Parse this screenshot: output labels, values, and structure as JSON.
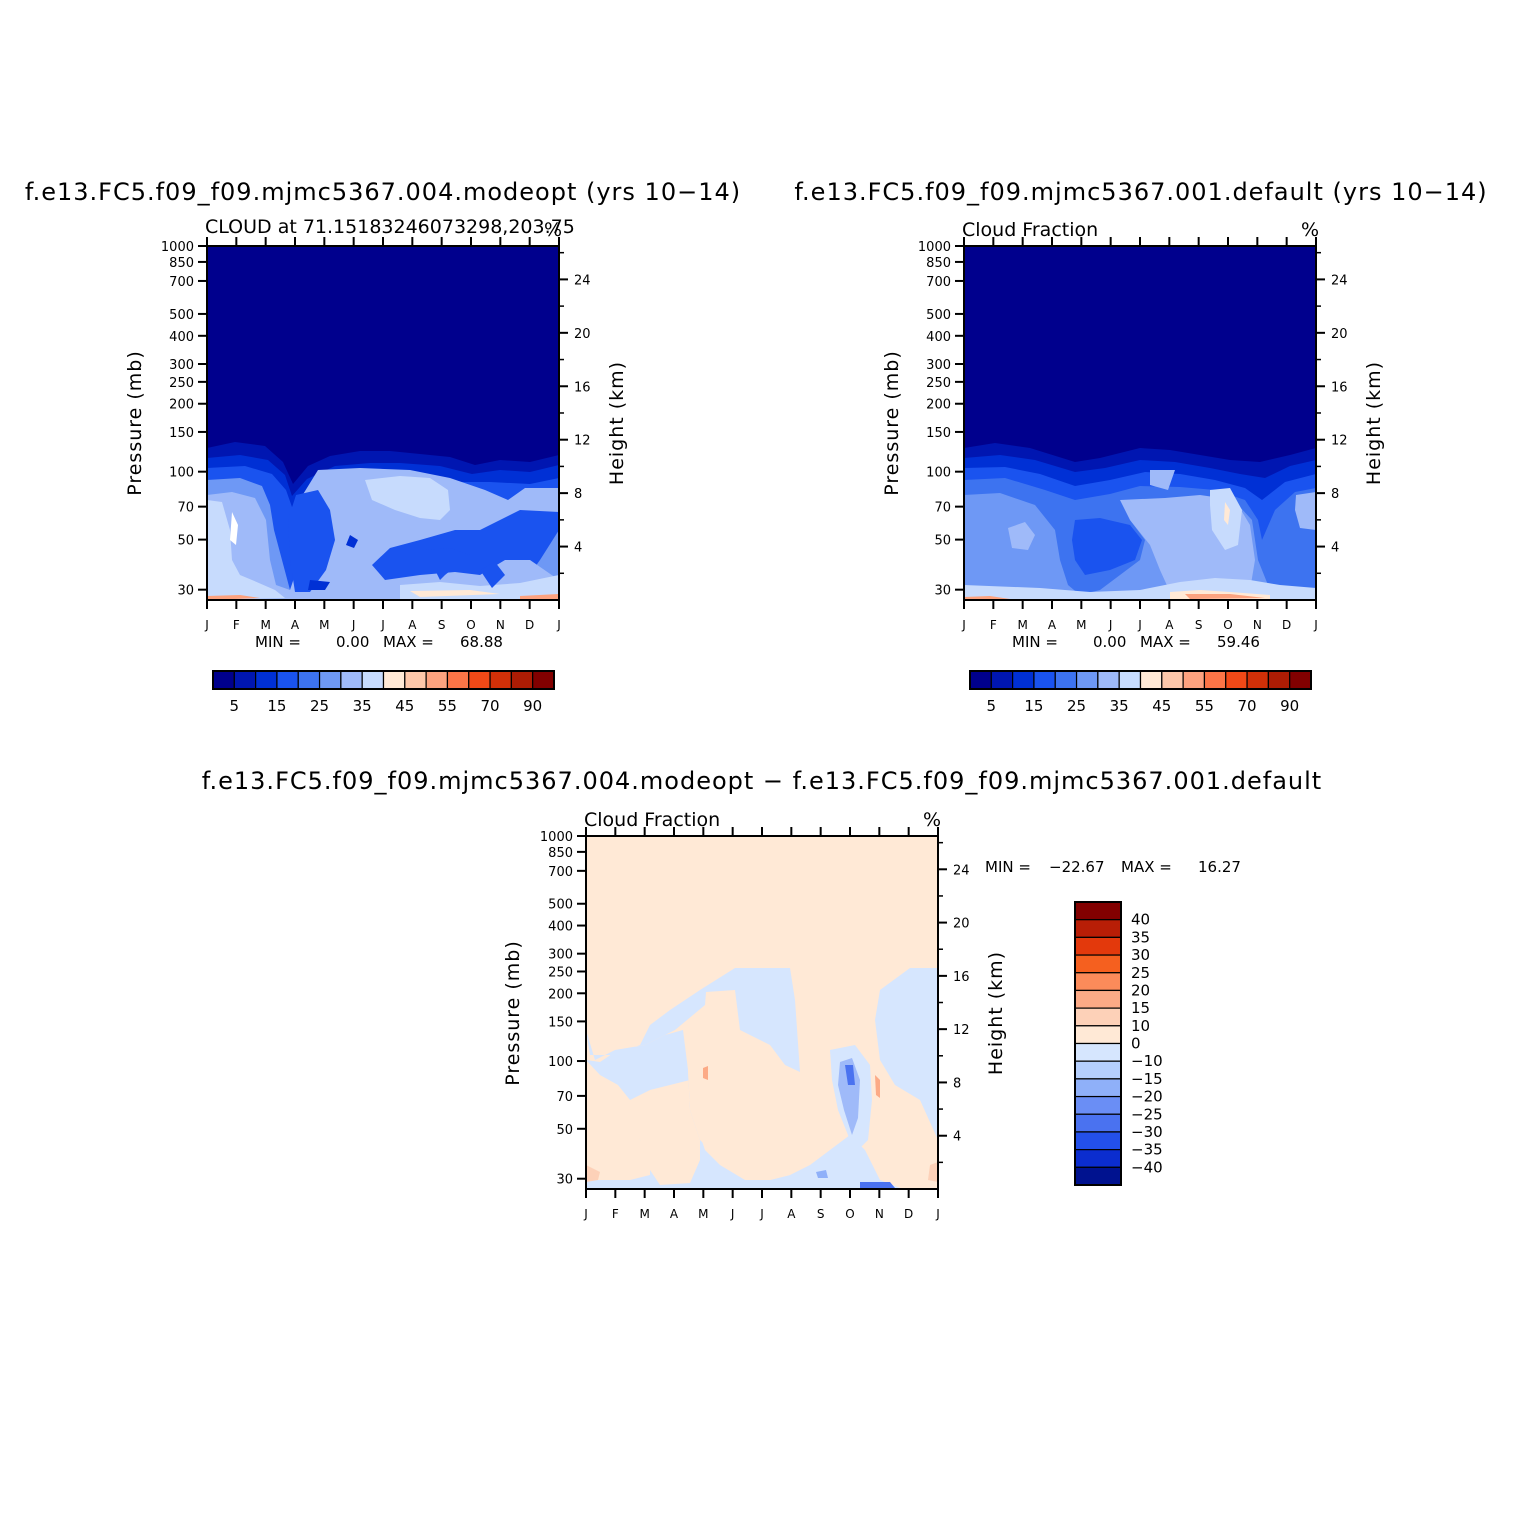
{
  "chart_data": [
    {
      "type": "heatmap",
      "name": "panel-a",
      "title": "f.e13.FC5.f09_f09.mjmc5367.004.modeopt (yrs 10−14)",
      "subtitle_left": "CLOUD at 71.15183246073298,203.75",
      "subtitle_right": "%",
      "ylabel": "Pressure (mb)",
      "y2label": "Height (km)",
      "x_ticks": [
        "J",
        "F",
        "M",
        "A",
        "M",
        "J",
        "J",
        "A",
        "S",
        "O",
        "N",
        "D",
        "J"
      ],
      "pressure_levels": [
        "30",
        "50",
        "70",
        "100",
        "150",
        "200",
        "250",
        "300",
        "400",
        "500",
        "700",
        "850",
        "1000"
      ],
      "pressure_values": [
        30,
        50,
        70,
        100,
        150,
        200,
        250,
        300,
        400,
        500,
        700,
        850,
        1000
      ],
      "height_levels": [
        "24",
        "20",
        "16",
        "12",
        "8",
        "4"
      ],
      "height_values": [
        24,
        20,
        16,
        12,
        8,
        4
      ],
      "min_label": "MIN =",
      "min_value": "0.00",
      "max_label": "MAX =",
      "max_value": "68.88",
      "colorbar_labels": [
        "5",
        "15",
        "25",
        "35",
        "45",
        "55",
        "70",
        "90"
      ],
      "colorbar_colors": [
        "#00008d",
        "#0016b1",
        "#0030d5",
        "#1a53ef",
        "#3d73f0",
        "#6e98f5",
        "#9fbaf9",
        "#c7dbfd",
        "#ffe9d6",
        "#fdc7aa",
        "#fca27f",
        "#fb7547",
        "#f14917",
        "#d33008",
        "#ac1c04",
        "#820000"
      ]
    },
    {
      "type": "heatmap",
      "name": "panel-b",
      "title": "f.e13.FC5.f09_f09.mjmc5367.001.default (yrs 10−14)",
      "subtitle_left": "Cloud Fraction",
      "subtitle_right": "%",
      "ylabel": "Pressure (mb)",
      "y2label": "Height (km)",
      "x_ticks": [
        "J",
        "F",
        "M",
        "A",
        "M",
        "J",
        "J",
        "A",
        "S",
        "O",
        "N",
        "D",
        "J"
      ],
      "pressure_levels": [
        "30",
        "50",
        "70",
        "100",
        "150",
        "200",
        "250",
        "300",
        "400",
        "500",
        "700",
        "850",
        "1000"
      ],
      "pressure_values": [
        30,
        50,
        70,
        100,
        150,
        200,
        250,
        300,
        400,
        500,
        700,
        850,
        1000
      ],
      "height_levels": [
        "24",
        "20",
        "16",
        "12",
        "8",
        "4"
      ],
      "height_values": [
        24,
        20,
        16,
        12,
        8,
        4
      ],
      "min_label": "MIN =",
      "min_value": "0.00",
      "max_label": "MAX =",
      "max_value": "59.46",
      "colorbar_labels": [
        "5",
        "15",
        "25",
        "35",
        "45",
        "55",
        "70",
        "90"
      ],
      "colorbar_colors": [
        "#00008d",
        "#0016b1",
        "#0030d5",
        "#1a53ef",
        "#3d73f0",
        "#6e98f5",
        "#9fbaf9",
        "#c7dbfd",
        "#ffe9d6",
        "#fdc7aa",
        "#fca27f",
        "#fb7547",
        "#f14917",
        "#d33008",
        "#ac1c04",
        "#820000"
      ]
    },
    {
      "type": "heatmap",
      "name": "panel-diff",
      "title": "f.e13.FC5.f09_f09.mjmc5367.004.modeopt − f.e13.FC5.f09_f09.mjmc5367.001.default",
      "subtitle_left": "Cloud Fraction",
      "subtitle_right": "%",
      "ylabel": "Pressure (mb)",
      "y2label": "Height (km)",
      "x_ticks": [
        "J",
        "F",
        "M",
        "A",
        "M",
        "J",
        "J",
        "A",
        "S",
        "O",
        "N",
        "D",
        "J"
      ],
      "pressure_levels": [
        "30",
        "50",
        "70",
        "100",
        "150",
        "200",
        "250",
        "300",
        "400",
        "500",
        "700",
        "850",
        "1000"
      ],
      "pressure_values": [
        30,
        50,
        70,
        100,
        150,
        200,
        250,
        300,
        400,
        500,
        700,
        850,
        1000
      ],
      "height_levels": [
        "24",
        "20",
        "16",
        "12",
        "8",
        "4"
      ],
      "height_values": [
        24,
        20,
        16,
        12,
        8,
        4
      ],
      "min_label": "MIN =",
      "min_value": "−22.67",
      "max_label": "MAX =",
      "max_value": "16.27",
      "colorbar_labels": [
        "40",
        "35",
        "30",
        "25",
        "20",
        "15",
        "10",
        "0",
        "−10",
        "−15",
        "−20",
        "−25",
        "−30",
        "−35",
        "−40"
      ],
      "colorbar_colors": [
        "#820000",
        "#b81e06",
        "#e3390c",
        "#f5601f",
        "#fb8b5a",
        "#fcaa86",
        "#fdd1b8",
        "#ffe9d6",
        "#d6e6fe",
        "#b5cffd",
        "#8fb0f9",
        "#6a8ef5",
        "#4a72f0",
        "#2350ea",
        "#0b2dcf",
        "#00128f"
      ]
    }
  ]
}
